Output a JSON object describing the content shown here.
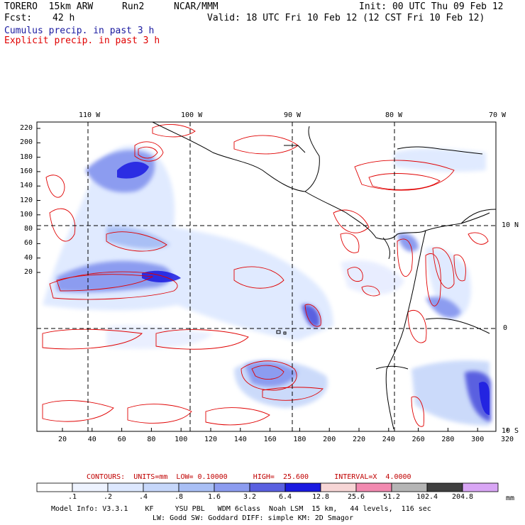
{
  "header": {
    "model": "TORERO  15km ARW",
    "run": "Run2",
    "org": "NCAR/MMM",
    "init": "Init: 00 UTC Thu 09 Feb 12",
    "fcst_label": "Fcst:",
    "fcst_value": "42 h",
    "valid": "Valid: 18 UTC Fri 10 Feb 12 (12 CST Fri 10 Feb 12)",
    "field1": "Cumulus precip. in past 3 h",
    "field2": "Explicit precip. in past 3 h"
  },
  "colors": {
    "field1": "#1a1aa0",
    "field2": "#e00000",
    "contour": "#e00000"
  },
  "map": {
    "lon_labels": [
      "110 W",
      "100 W",
      "90 W",
      "80 W",
      "70 W"
    ],
    "lat_labels": [
      "10 N",
      "0",
      "10 S"
    ],
    "y_ticks": [
      "220",
      "200",
      "180",
      "160",
      "140",
      "120",
      "100",
      "80",
      "60",
      "40",
      "20"
    ],
    "x_ticks": [
      "20",
      "40",
      "60",
      "80",
      "100",
      "120",
      "140",
      "160",
      "180",
      "200",
      "220",
      "240",
      "260",
      "280",
      "300",
      "320"
    ]
  },
  "contour_info": {
    "text": "CONTOURS:  UNITS=mm  LOW= 0.10000      HIGH=  25.600      INTERVAL=X  4.0000"
  },
  "colorbar": {
    "labels": [
      ".1",
      ".2",
      ".4",
      ".8",
      "1.6",
      "3.2",
      "6.4",
      "12.8",
      "25.6",
      "51.2",
      "102.4",
      "204.8"
    ],
    "unit": "mm",
    "colors": [
      "#ffffff",
      "#eef3ff",
      "#dde8ff",
      "#c6d7fa",
      "#a9bff5",
      "#8c9cf0",
      "#5a60e0",
      "#1a1ae0",
      "#f7d6d6",
      "#f28ab0",
      "#b5b5b5",
      "#404040",
      "#d9a6f5"
    ]
  },
  "footer": {
    "line1": "Model Info: V3.3.1    KF     YSU PBL   WDM 6class  Noah LSM  15 km,   44 levels,  116 sec",
    "line2": "LW: Godd SW: Goddard DIFF: simple KM: 2D Smagor"
  }
}
